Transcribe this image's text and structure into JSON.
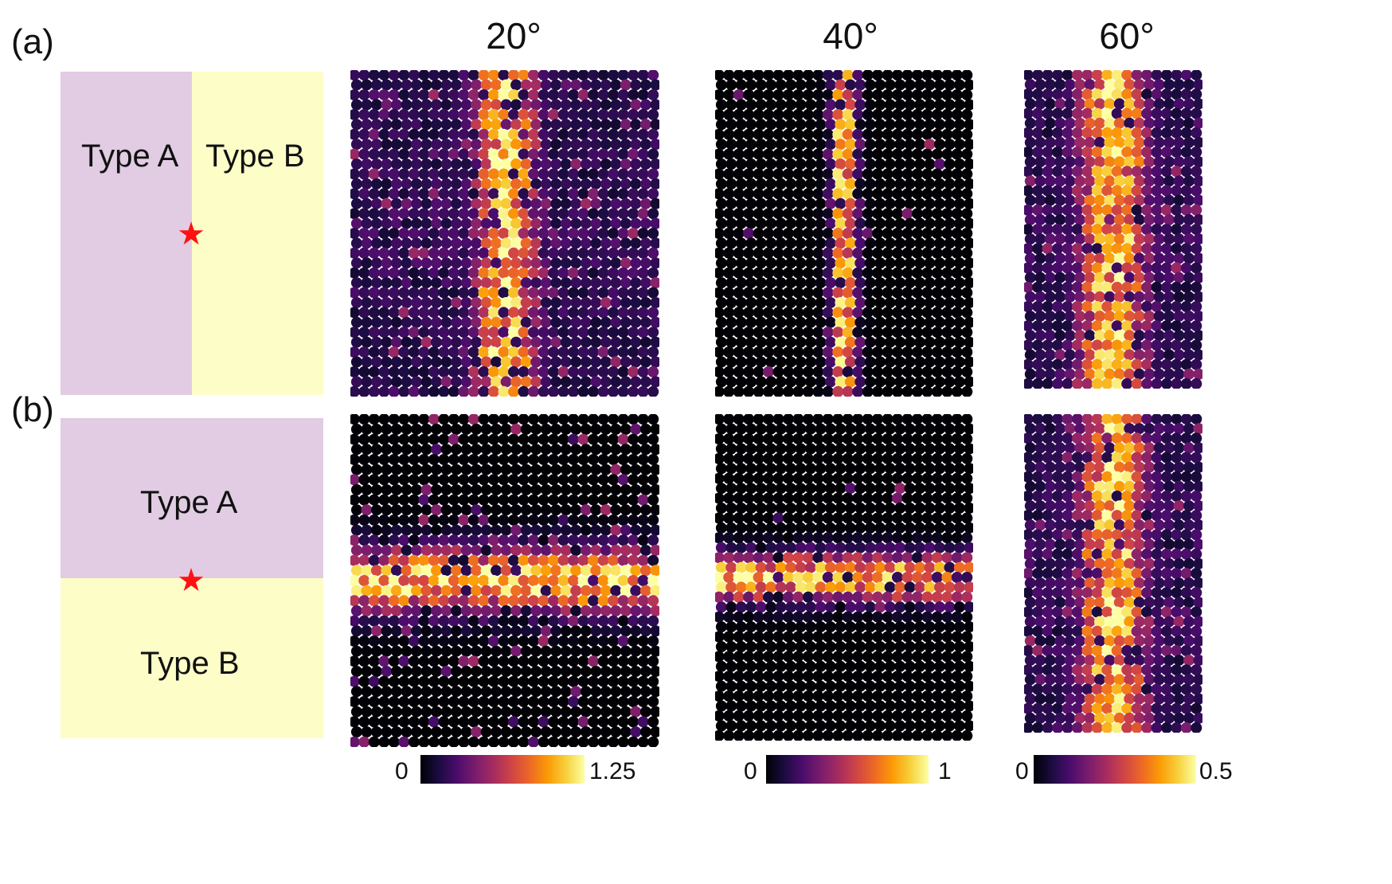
{
  "panel_labels": {
    "a": "(a)",
    "b": "(b)"
  },
  "angles": [
    "20°",
    "40°",
    "60°"
  ],
  "schematic_a": {
    "left_label": "Type A",
    "right_label": "Type B",
    "left_color": "#e1cce3",
    "right_color": "#fdfdc8",
    "source_marker": "red-star"
  },
  "schematic_b": {
    "top_label": "Type A",
    "bottom_label": "Type B",
    "top_color": "#e1cce3",
    "bottom_color": "#fdfdc8",
    "source_marker": "red-star"
  },
  "colorbars": [
    {
      "min": "0",
      "max": "1.25"
    },
    {
      "min": "0",
      "max": "1"
    },
    {
      "min": "0",
      "max": "0.5"
    }
  ],
  "colormap": "inferno",
  "colormap_stops": [
    "#000004",
    "#1b0c41",
    "#4a0c6b",
    "#781c6d",
    "#a52c60",
    "#cf4446",
    "#ed6925",
    "#fb9b06",
    "#f7d13d",
    "#fcffa4"
  ],
  "maps": [
    {
      "row": "a",
      "angle": "20°",
      "pattern": "vertical",
      "cols": 31,
      "rows": 33,
      "spread": 2.4,
      "halo": 0.35,
      "gap": 0.7,
      "scale": 1.25
    },
    {
      "row": "a",
      "angle": "40°",
      "pattern": "vertical",
      "cols": 26,
      "rows": 33,
      "spread": 0.9,
      "halo": 0.02,
      "gap": 0.6,
      "scale": 1
    },
    {
      "row": "a",
      "angle": "60°",
      "pattern": "vertical",
      "cols": 18,
      "rows": 33,
      "spread": 2.6,
      "halo": 0.45,
      "gap": 0.6,
      "scale": 0.5
    },
    {
      "row": "b",
      "angle": "20°",
      "pattern": "horizontal",
      "cols": 31,
      "rows": 33,
      "spread": 2.3,
      "halo": 0.3,
      "gap": 0.6,
      "scale": 1.25
    },
    {
      "row": "b",
      "angle": "40°",
      "pattern": "horizontal",
      "cols": 26,
      "rows": 33,
      "spread": 1.7,
      "halo": 0.05,
      "gap": 0.5,
      "scale": 1
    },
    {
      "row": "b",
      "angle": "60°",
      "pattern": "vertical",
      "cols": 18,
      "rows": 33,
      "spread": 2.6,
      "halo": 0.45,
      "gap": 0.5,
      "scale": 0.5
    }
  ]
}
